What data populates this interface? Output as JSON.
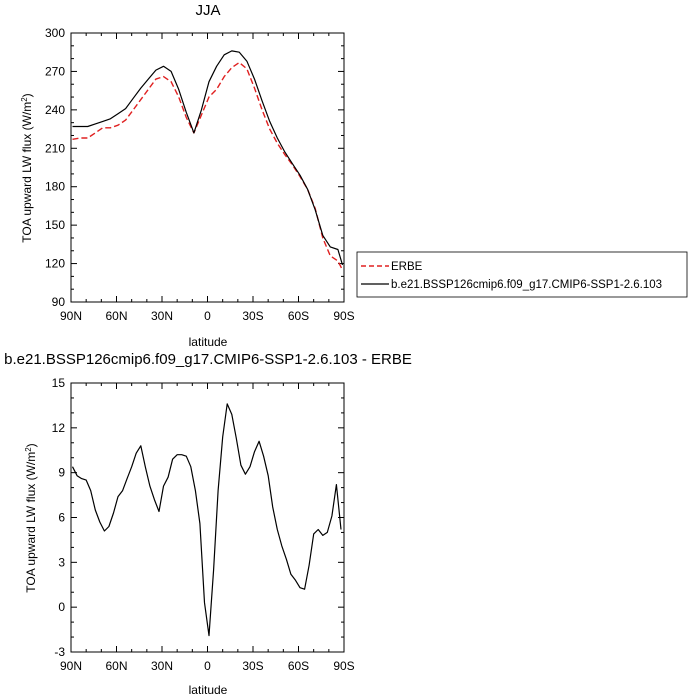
{
  "chart_data": [
    {
      "type": "line",
      "title": "JJA",
      "xlabel": "latitude",
      "ylabel_main": "TOA upward LW flux (W/m",
      "ylabel_sup": "2",
      "ylabel_close": ")",
      "xlim": [
        90,
        -90
      ],
      "ylim": [
        90,
        300
      ],
      "xticks": [
        90,
        60,
        30,
        0,
        -30,
        -60,
        -90
      ],
      "xtick_labels": [
        "90N",
        "60N",
        "30N",
        "0",
        "30S",
        "60S",
        "90S"
      ],
      "yticks": [
        90,
        120,
        150,
        180,
        210,
        240,
        270,
        300
      ],
      "ytick_labels": [
        "90",
        "120",
        "150",
        "180",
        "210",
        "240",
        "270",
        "300"
      ],
      "legend": "right",
      "series": [
        {
          "name": "ERBE",
          "color": "#e02020",
          "dash": true,
          "x": [
            89,
            84,
            79,
            74,
            69,
            64,
            59,
            54,
            49,
            44,
            39,
            34,
            29,
            24,
            19,
            14,
            9,
            4,
            -1,
            -6,
            -11,
            -16,
            -21,
            -26,
            -31,
            -36,
            -41,
            -46,
            -51,
            -56,
            -61,
            -66,
            -71,
            -76,
            -81,
            -86,
            -89
          ],
          "y": [
            217,
            218,
            218,
            222,
            226,
            226,
            228,
            232,
            240,
            248,
            256,
            264,
            266,
            262,
            250,
            234,
            222,
            236,
            250,
            256,
            266,
            273,
            277,
            272,
            257,
            240,
            225,
            214,
            205,
            197,
            188,
            178,
            163,
            140,
            126,
            122,
            115
          ]
        },
        {
          "name": "b.e21.BSSP126cmip6.f09_g17.CMIP6-SSP1-2.6.103",
          "color": "#000000",
          "dash": false,
          "x": [
            89,
            84,
            79,
            74,
            69,
            64,
            59,
            54,
            49,
            44,
            39,
            34,
            29,
            24,
            19,
            14,
            9,
            4,
            -1,
            -6,
            -11,
            -16,
            -21,
            -26,
            -31,
            -36,
            -41,
            -46,
            -51,
            -56,
            -61,
            -66,
            -71,
            -76,
            -81,
            -86,
            -89
          ],
          "y": [
            227,
            227,
            227,
            229,
            231,
            233,
            237,
            241,
            249,
            257,
            264,
            271,
            274,
            270,
            256,
            238,
            222,
            240,
            262,
            274,
            283,
            286,
            285,
            278,
            264,
            247,
            231,
            218,
            207,
            198,
            189,
            178,
            162,
            142,
            133,
            131,
            119
          ]
        }
      ]
    },
    {
      "type": "line",
      "title": "b.e21.BSSP126cmip6.f09_g17.CMIP6-SSP1-2.6.103 - ERBE",
      "xlabel": "latitude",
      "ylabel_main": "TOA upward LW flux (W/m",
      "ylabel_sup": "2",
      "ylabel_close": ")",
      "xlim": [
        90,
        -90
      ],
      "ylim": [
        -3,
        15
      ],
      "xticks": [
        90,
        60,
        30,
        0,
        -30,
        -60,
        -90
      ],
      "xtick_labels": [
        "90N",
        "60N",
        "30N",
        "0",
        "30S",
        "60S",
        "90S"
      ],
      "yticks": [
        -3,
        0,
        3,
        6,
        9,
        12,
        15
      ],
      "ytick_labels": [
        "-3",
        "0",
        "3",
        "6",
        "9",
        "12",
        "15"
      ],
      "series": [
        {
          "color": "#000000",
          "dash": false,
          "x": [
            89,
            86,
            83,
            80,
            77,
            74,
            71,
            68,
            65,
            62,
            59,
            56,
            53,
            50,
            47,
            44,
            41,
            38,
            35,
            32,
            29,
            26,
            23,
            20,
            17,
            14,
            11,
            8,
            5,
            2,
            -1,
            -4,
            -7,
            -10,
            -13,
            -16,
            -19,
            -22,
            -25,
            -28,
            -31,
            -34,
            -37,
            -40,
            -43,
            -46,
            -49,
            -52,
            -55,
            -58,
            -61,
            -64,
            -67,
            -70,
            -73,
            -76,
            -79,
            -82,
            -85,
            -88
          ],
          "y": [
            9.4,
            8.8,
            8.6,
            8.5,
            7.8,
            6.5,
            5.7,
            5.1,
            5.4,
            6.3,
            7.4,
            7.8,
            8.6,
            9.4,
            10.3,
            10.8,
            9.4,
            8.1,
            7.2,
            6.4,
            8.1,
            8.7,
            9.9,
            10.2,
            10.2,
            10.1,
            9.4,
            7.8,
            5.6,
            0.3,
            -1.9,
            2.5,
            7.8,
            11.4,
            13.6,
            12.9,
            11.3,
            9.5,
            8.9,
            9.4,
            10.4,
            11.1,
            10.1,
            8.8,
            6.7,
            5.2,
            4.1,
            3.2,
            2.2,
            1.8,
            1.3,
            1.2,
            2.8,
            4.9,
            5.2,
            4.8,
            5.0,
            6.1,
            8.2,
            5.2
          ]
        }
      ]
    }
  ]
}
